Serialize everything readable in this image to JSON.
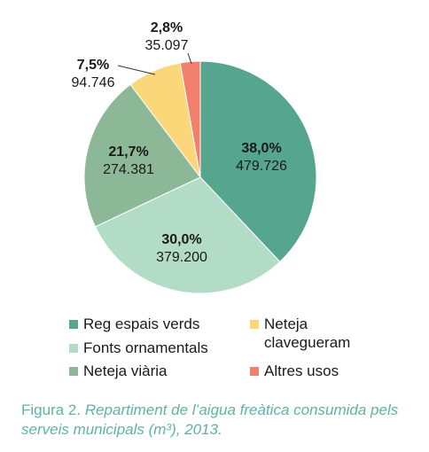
{
  "chart_data": {
    "type": "pie",
    "slices": [
      {
        "name": "Reg espais verds",
        "pct_label": "38,0%",
        "value_label": "479.726",
        "value": 479726,
        "color": "#56a68f"
      },
      {
        "name": "Fonts ornamentals",
        "pct_label": "30,0%",
        "value_label": "379.200",
        "value": 379200,
        "color": "#b3dcc7"
      },
      {
        "name": "Neteja viària",
        "pct_label": "21,7%",
        "value_label": "274.381",
        "value": 274381,
        "color": "#8db897"
      },
      {
        "name": "Neteja clavegueram",
        "pct_label": "7,5%",
        "value_label": "94.746",
        "value": 94746,
        "color": "#fbd77a"
      },
      {
        "name": "Altres usos",
        "pct_label": "2,8%",
        "value_label": "35.097",
        "value": 35097,
        "color": "#f2806c"
      }
    ],
    "legend_placement": "bottom"
  },
  "legend": [
    {
      "label": "Reg espais verds",
      "color": "#56a68f"
    },
    {
      "label": "Fonts ornamentals",
      "color": "#b3dcc7"
    },
    {
      "label": "Neteja viària",
      "color": "#8db897"
    },
    {
      "label_line1": "Neteja",
      "label_line2": "clavegueram",
      "color": "#fbd77a"
    },
    {
      "label": "Altres usos",
      "color": "#f2806c"
    }
  ],
  "caption": {
    "lead": "Figura 2.",
    "rest": "Repartiment de l’aigua freàtica consumida pels serveis municipals (m³), 2013."
  }
}
